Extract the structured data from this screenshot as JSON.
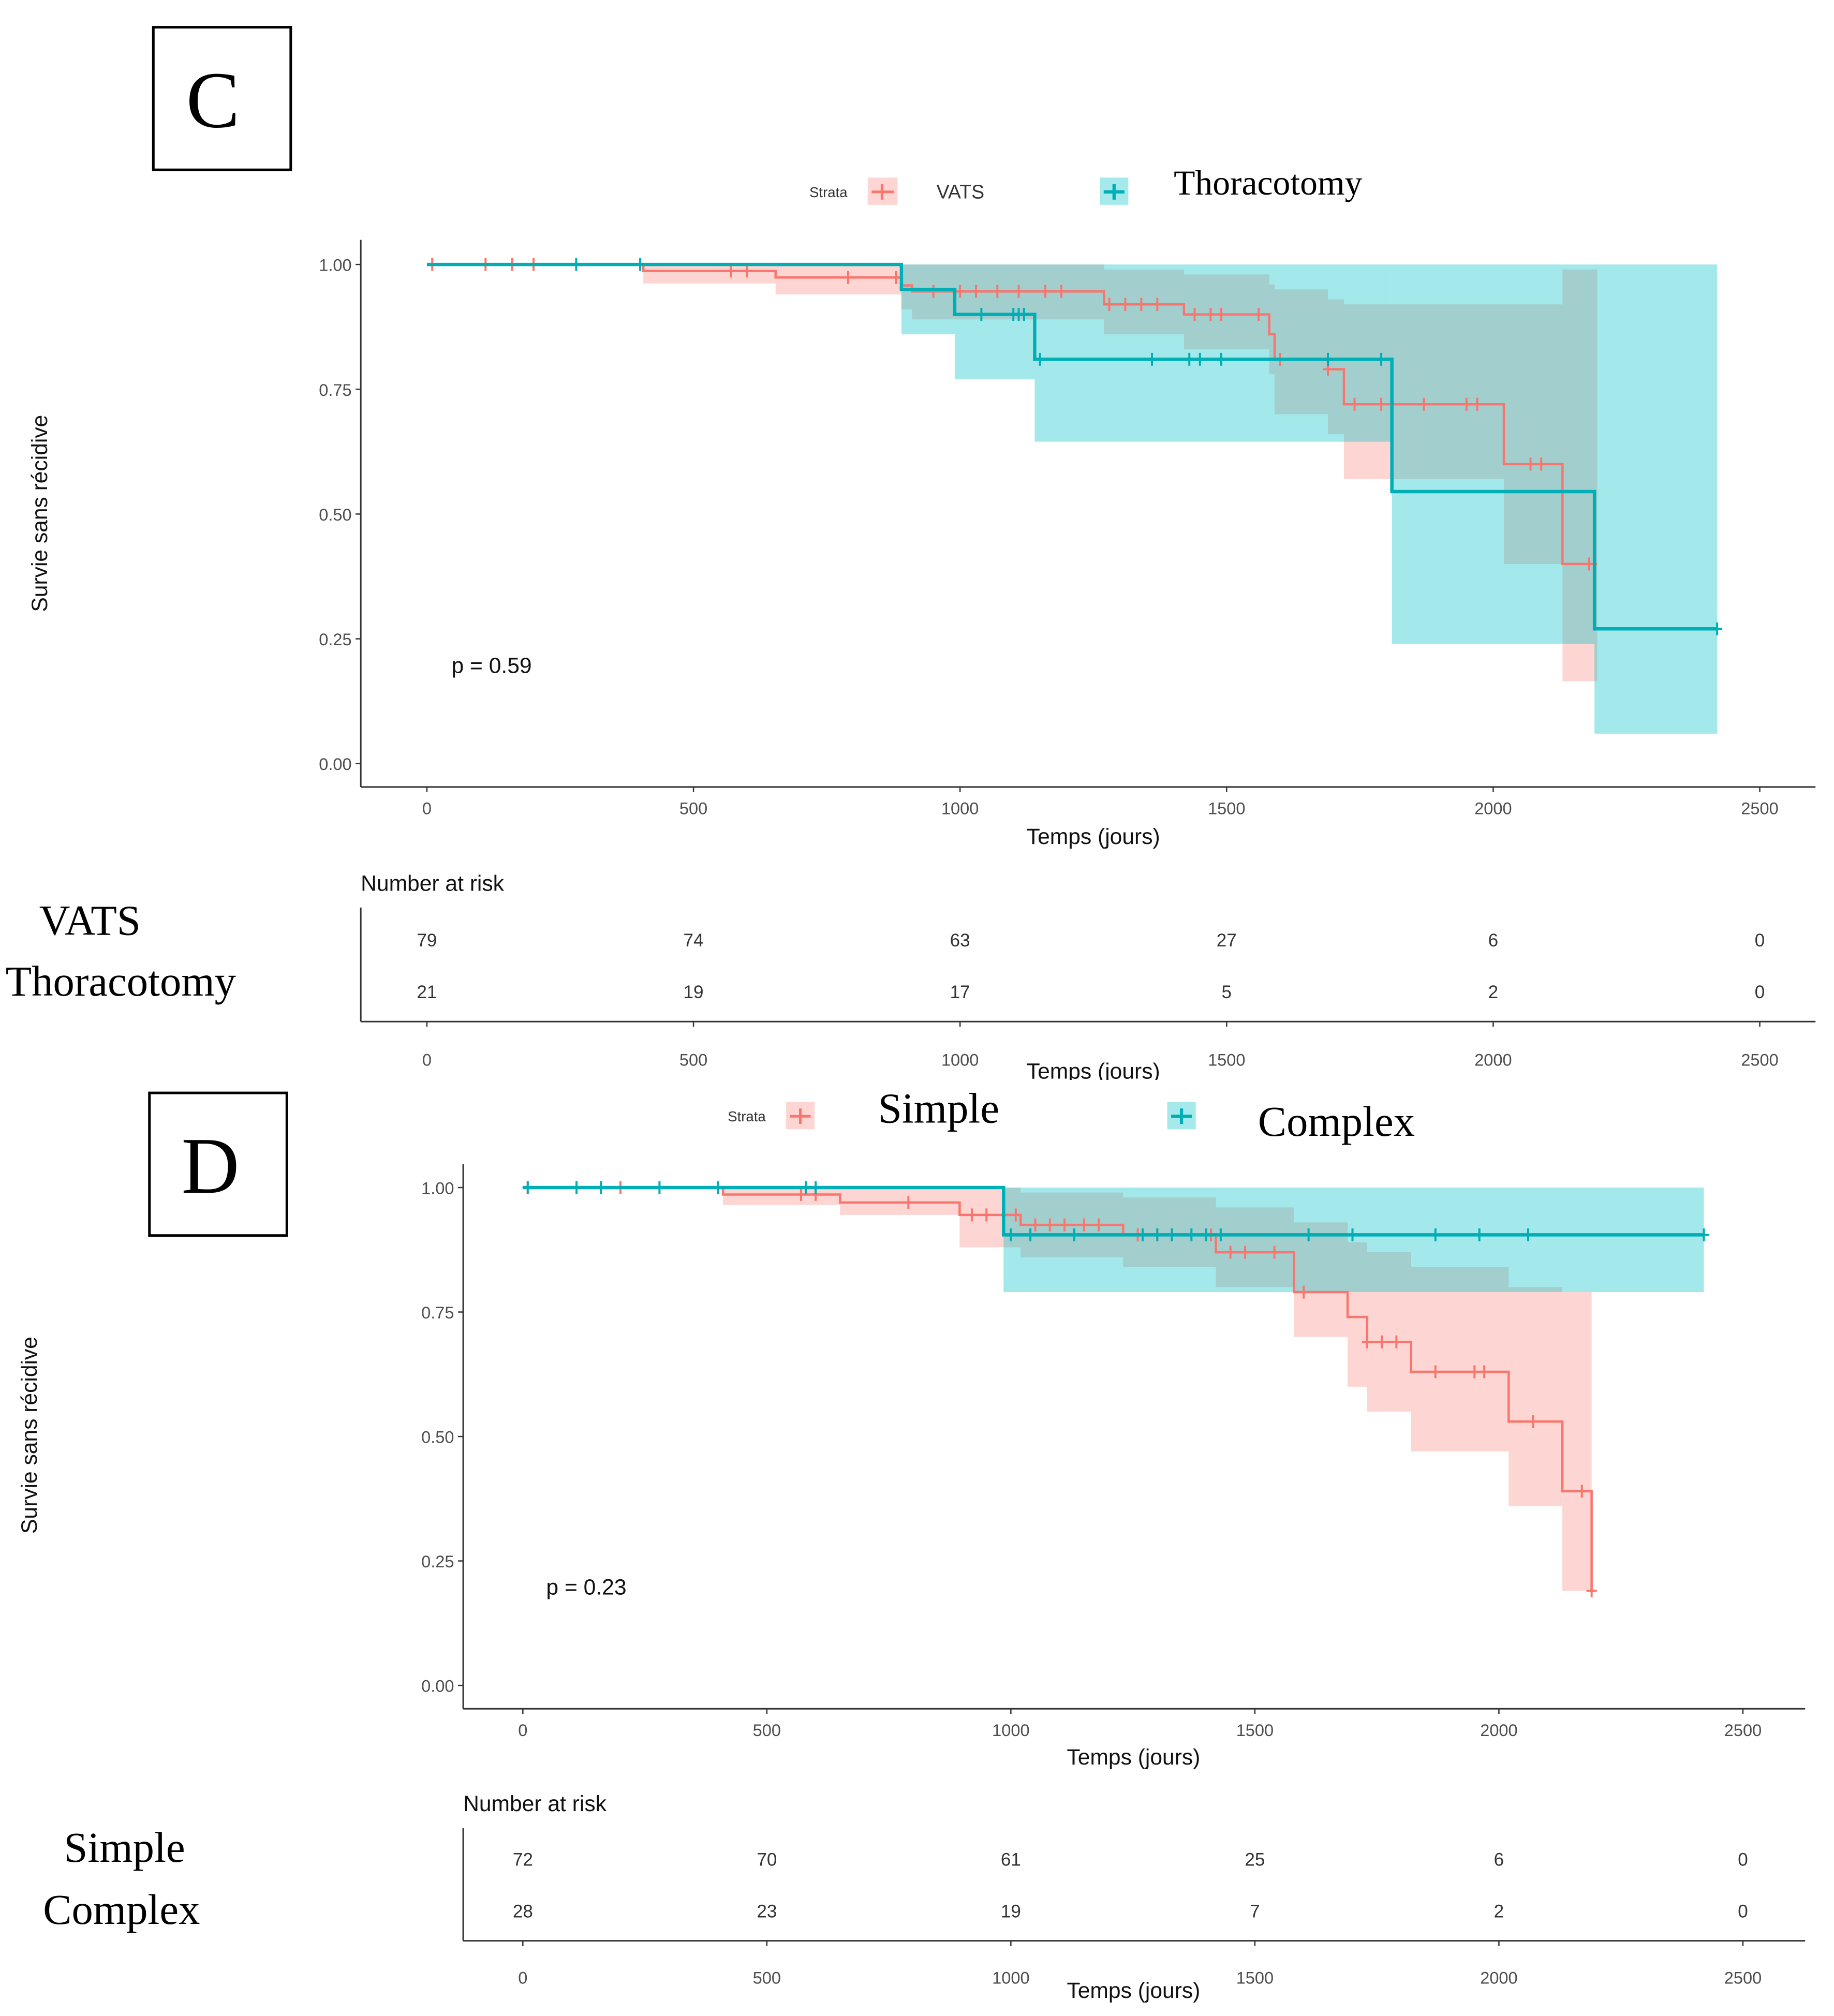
{
  "colors": {
    "group1": "#F8766D",
    "group2": "#00BFC4"
  },
  "chart_data": [
    {
      "type": "line",
      "panel_label": "C",
      "legend_title": "Strata",
      "legend": [
        "VATS",
        "Thoracotomy"
      ],
      "xlabel": "Temps (jours)",
      "ylabel": "Survie sans récidive",
      "xlim": [
        0,
        2500
      ],
      "ylim": [
        0,
        1
      ],
      "xticks": [
        "0",
        "500",
        "1000",
        "1500",
        "2000",
        "2500"
      ],
      "yticks": [
        "0.00",
        "0.25",
        "0.50",
        "0.75",
        "1.00"
      ],
      "pvalue": "p = 0.59",
      "series": [
        {
          "name": "VATS",
          "steps": [
            [
              0,
              1
            ],
            [
              406,
              0.987
            ],
            [
              654,
              0.974
            ],
            [
              890,
              0.958
            ],
            [
              910,
              0.946
            ],
            [
              1270,
              0.92
            ],
            [
              1420,
              0.9
            ],
            [
              1580,
              0.86
            ],
            [
              1590,
              0.81
            ],
            [
              1690,
              0.79
            ],
            [
              1720,
              0.72
            ],
            [
              2020,
              0.6
            ],
            [
              2130,
              0.4
            ]
          ],
          "end": 2195,
          "lower": [
            1,
            0.962,
            0.94,
            0.91,
            0.89,
            0.86,
            0.83,
            0.78,
            0.7,
            0.66,
            0.57,
            0.4,
            0.165
          ],
          "upper": [
            1,
            1,
            1,
            1,
            1,
            0.99,
            0.98,
            0.96,
            0.95,
            0.93,
            0.92,
            0.92,
            0.99
          ],
          "censor": [
            10,
            110,
            160,
            200,
            570,
            600,
            790,
            880,
            950,
            1000,
            1030,
            1070,
            1110,
            1160,
            1190,
            1280,
            1310,
            1340,
            1370,
            1440,
            1470,
            1490,
            1560,
            1600,
            1690,
            1740,
            1790,
            1870,
            1950,
            1970,
            2070,
            2090,
            2180
          ]
        },
        {
          "name": "Thoracotomy",
          "steps": [
            [
              0,
              1
            ],
            [
              890,
              0.95
            ],
            [
              990,
              0.9
            ],
            [
              1140,
              0.81
            ],
            [
              1810,
              0.545
            ],
            [
              2190,
              0.27
            ]
          ],
          "end": 2420,
          "lower": [
            1,
            0.86,
            0.77,
            0.645,
            0.24,
            0.06
          ],
          "upper": [
            1,
            1,
            1,
            1,
            1,
            1
          ],
          "censor": [
            280,
            400,
            1040,
            1100,
            1110,
            1120,
            1150,
            1360,
            1430,
            1450,
            1490,
            1690,
            1790,
            2420
          ]
        }
      ],
      "risk_table": {
        "title": "Number at risk",
        "groups": [
          "VATS",
          "Thoracotomy"
        ],
        "times": [
          "0",
          "500",
          "1000",
          "1500",
          "2000",
          "2500"
        ],
        "values": [
          [
            "79",
            "74",
            "63",
            "27",
            "6",
            "0"
          ],
          [
            "21",
            "19",
            "17",
            "5",
            "2",
            "0"
          ]
        ],
        "xlabel": "Temps (jours)"
      }
    },
    {
      "type": "line",
      "panel_label": "D",
      "legend_title": "Strata",
      "legend": [
        "Simple",
        "Complex"
      ],
      "xlabel": "Temps (jours)",
      "ylabel": "Survie sans récidive",
      "xlim": [
        0,
        2500
      ],
      "ylim": [
        0,
        1
      ],
      "xticks": [
        "0",
        "500",
        "1000",
        "1500",
        "2000",
        "2500"
      ],
      "yticks": [
        "0.00",
        "0.25",
        "0.50",
        "0.75",
        "1.00"
      ],
      "pvalue": "p = 0.23",
      "series": [
        {
          "name": "Simple",
          "steps": [
            [
              0,
              1
            ],
            [
              410,
              0.986
            ],
            [
              650,
              0.97
            ],
            [
              895,
              0.945
            ],
            [
              1020,
              0.925
            ],
            [
              1230,
              0.905
            ],
            [
              1420,
              0.87
            ],
            [
              1580,
              0.79
            ],
            [
              1690,
              0.74
            ],
            [
              1730,
              0.69
            ],
            [
              1820,
              0.63
            ],
            [
              2020,
              0.53
            ],
            [
              2130,
              0.39
            ],
            [
              2190,
              0.19
            ]
          ],
          "end": 2190,
          "lower": [
            1,
            0.965,
            0.945,
            0.88,
            0.86,
            0.84,
            0.8,
            0.7,
            0.6,
            0.55,
            0.47,
            0.36,
            0.19,
            0.04
          ],
          "upper": [
            1,
            1,
            1,
            1,
            0.99,
            0.98,
            0.96,
            0.93,
            0.89,
            0.87,
            0.84,
            0.8,
            0.79,
            0.95
          ],
          "censor": [
            10,
            200,
            570,
            600,
            790,
            920,
            950,
            1010,
            1050,
            1080,
            1110,
            1150,
            1180,
            1260,
            1300,
            1330,
            1410,
            1450,
            1480,
            1540,
            1600,
            1730,
            1760,
            1790,
            1870,
            1950,
            1970,
            2070,
            2170,
            2190
          ]
        },
        {
          "name": "Complex",
          "steps": [
            [
              0,
              1
            ],
            [
              985,
              0.905
            ]
          ],
          "end": 2420,
          "lower": [
            1,
            0.79
          ],
          "upper": [
            1,
            1
          ],
          "censor": [
            10,
            110,
            160,
            280,
            400,
            580,
            600,
            1000,
            1040,
            1130,
            1270,
            1300,
            1330,
            1370,
            1400,
            1430,
            1610,
            1700,
            1870,
            1960,
            2060,
            2420
          ]
        }
      ],
      "risk_table": {
        "title": "Number at risk",
        "groups": [
          "Simple",
          "Complex"
        ],
        "times": [
          "0",
          "500",
          "1000",
          "1500",
          "2000",
          "2500"
        ],
        "values": [
          [
            "72",
            "70",
            "61",
            "25",
            "6",
            "0"
          ],
          [
            "28",
            "23",
            "19",
            "7",
            "2",
            "0"
          ]
        ],
        "xlabel": "Temps (jours)"
      }
    }
  ]
}
